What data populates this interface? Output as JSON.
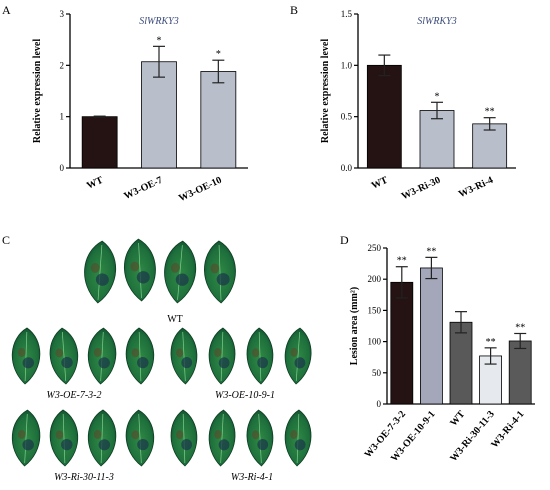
{
  "chart_data": [
    {
      "panel": "A",
      "type": "bar",
      "title": "SlWRKY3",
      "ylabel": "Relative expression level",
      "ylim": [
        0,
        3
      ],
      "yticks": [
        "0",
        "1",
        "2",
        "3"
      ],
      "categories": [
        "WT",
        "W3-OE-7",
        "W3-OE-10"
      ],
      "values": [
        1.0,
        2.07,
        1.88
      ],
      "errors": [
        0.01,
        0.3,
        0.22
      ],
      "significance": [
        "",
        "*",
        "*"
      ],
      "colors": [
        "#251313",
        "#b9bfca",
        "#b9bfca"
      ]
    },
    {
      "panel": "B",
      "type": "bar",
      "title": "SlWRKY3",
      "ylabel": "Relative expression level",
      "ylim": [
        0,
        1.5
      ],
      "yticks": [
        "0.0",
        "0.5",
        "1.0",
        "1.5"
      ],
      "categories": [
        "WT",
        "W3-Ri-30",
        "W3-Ri-4"
      ],
      "values": [
        1.0,
        0.56,
        0.43
      ],
      "errors": [
        0.1,
        0.08,
        0.06
      ],
      "significance": [
        "",
        "*",
        "**"
      ],
      "colors": [
        "#251313",
        "#b9bfca",
        "#b9bfca"
      ]
    },
    {
      "panel": "D",
      "type": "bar",
      "title": "",
      "ylabel": "Lesion area (mm²)",
      "ylim": [
        0,
        250
      ],
      "yticks": [
        "0",
        "50",
        "100",
        "150",
        "200",
        "250"
      ],
      "categories": [
        "W3-OE-7-3-2",
        "W3-OE-10-9-1",
        "WT",
        "W3-Ri-30-11-3",
        "W3-Ri-4-1"
      ],
      "values": [
        195,
        218,
        131,
        77,
        101
      ],
      "errors": [
        25,
        17,
        17,
        13,
        12
      ],
      "significance": [
        "**",
        "**",
        "",
        "**",
        "**"
      ],
      "colors": [
        "#251313",
        "#a3a7b9",
        "#595959",
        "#e6eaee",
        "#5a5a5a"
      ]
    }
  ],
  "panel_c": {
    "letter": "C",
    "labels": [
      "WT",
      "W3-OE-7-3-2",
      "W3-OE-10-9-1",
      "W3-Ri-30-11-3",
      "W3-Ri-4-1"
    ]
  }
}
